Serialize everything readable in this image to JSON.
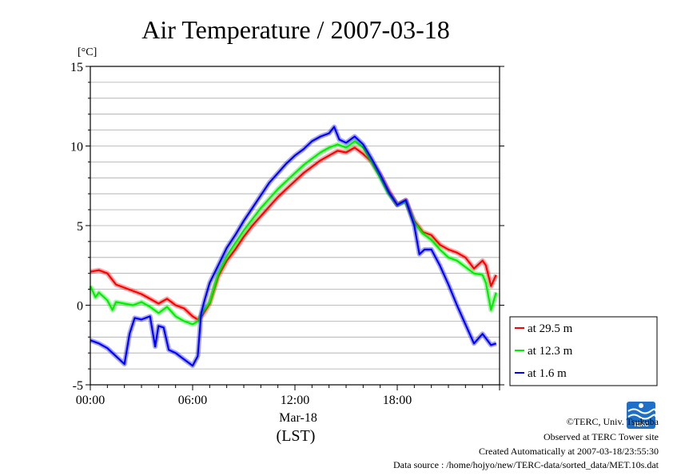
{
  "chart_data": {
    "type": "line",
    "title": "Air Temperature / 2007-03-18",
    "yunit": "[°C]",
    "ylim": [
      -5,
      15
    ],
    "yticks": [
      -5,
      0,
      5,
      10,
      15
    ],
    "xlim": [
      0,
      24
    ],
    "xticks": [
      {
        "value": 0,
        "label": "00:00"
      },
      {
        "value": 6,
        "label": "06:00"
      },
      {
        "value": 12,
        "label": "12:00"
      },
      {
        "value": 18,
        "label": "18:00"
      }
    ],
    "date_label": "Mar-18",
    "xlabel": "(LST)",
    "grid": true,
    "legend_position": "right",
    "series": [
      {
        "name": "at 29.5 m",
        "color": "#ff0000",
        "x": [
          0,
          0.5,
          1,
          1.5,
          2,
          2.5,
          3,
          3.5,
          4,
          4.5,
          5,
          5.5,
          6,
          6.3,
          6.6,
          7,
          7.5,
          8,
          8.5,
          9,
          9.5,
          10,
          10.5,
          11,
          11.5,
          12,
          12.5,
          13,
          13.5,
          14,
          14.5,
          15,
          15.5,
          16,
          16.5,
          17,
          17.5,
          18,
          18.5,
          19,
          19.5,
          20,
          20.5,
          21,
          21.5,
          22,
          22.5,
          23,
          23.2,
          23.5,
          23.8
        ],
        "y": [
          2.1,
          2.2,
          2.0,
          1.3,
          1.1,
          0.9,
          0.7,
          0.4,
          0.1,
          0.4,
          0.0,
          -0.2,
          -0.7,
          -0.9,
          -0.6,
          0.1,
          1.8,
          2.8,
          3.5,
          4.3,
          5.0,
          5.6,
          6.2,
          6.8,
          7.3,
          7.8,
          8.3,
          8.7,
          9.1,
          9.4,
          9.7,
          9.6,
          9.9,
          9.5,
          9.0,
          8.2,
          7.2,
          6.3,
          6.6,
          5.3,
          4.6,
          4.4,
          3.8,
          3.5,
          3.3,
          3.0,
          2.3,
          2.8,
          2.5,
          1.2,
          1.9
        ]
      },
      {
        "name": "at 12.3 m",
        "color": "#00ee00",
        "x": [
          0,
          0.3,
          0.5,
          1,
          1.3,
          1.5,
          2,
          2.5,
          3,
          3.5,
          4,
          4.5,
          5,
          5.5,
          6,
          6.3,
          6.6,
          7,
          7.5,
          8,
          8.5,
          9,
          9.5,
          10,
          10.5,
          11,
          11.5,
          12,
          12.5,
          13,
          13.5,
          14,
          14.5,
          15,
          15.5,
          16,
          16.5,
          17,
          17.5,
          18,
          18.5,
          19,
          19.5,
          20,
          20.5,
          21,
          21.5,
          22,
          22.5,
          23,
          23.2,
          23.5,
          23.8
        ],
        "y": [
          1.2,
          0.5,
          0.8,
          0.3,
          -0.3,
          0.2,
          0.1,
          0.0,
          0.2,
          -0.1,
          -0.5,
          -0.1,
          -0.7,
          -1.0,
          -1.2,
          -1.0,
          -0.4,
          0.2,
          2.0,
          3.1,
          3.9,
          4.7,
          5.4,
          6.1,
          6.7,
          7.3,
          7.8,
          8.3,
          8.8,
          9.2,
          9.6,
          9.9,
          10.1,
          9.9,
          10.3,
          9.9,
          9.0,
          8.0,
          7.0,
          6.3,
          6.5,
          5.2,
          4.5,
          4.1,
          3.5,
          3.0,
          2.8,
          2.4,
          2.0,
          1.9,
          1.4,
          -0.3,
          0.8
        ]
      },
      {
        "name": "at 1.6 m",
        "color": "#0000ff",
        "x": [
          0,
          0.5,
          1,
          1.5,
          2,
          2.3,
          2.6,
          3,
          3.5,
          3.8,
          4,
          4.3,
          4.6,
          5,
          5.5,
          6,
          6.3,
          6.5,
          6.7,
          7,
          7.5,
          8,
          8.5,
          9,
          9.5,
          10,
          10.5,
          11,
          11.5,
          12,
          12.5,
          13,
          13.5,
          14,
          14.3,
          14.6,
          15,
          15.5,
          16,
          16.5,
          17,
          17.5,
          18,
          18.5,
          19,
          19.3,
          19.6,
          20,
          20.5,
          21,
          21.5,
          22,
          22.5,
          23,
          23.5,
          23.8
        ],
        "y": [
          -2.2,
          -2.4,
          -2.7,
          -3.2,
          -3.7,
          -1.8,
          -0.8,
          -0.9,
          -0.7,
          -2.6,
          -1.3,
          -1.4,
          -2.8,
          -3.0,
          -3.4,
          -3.8,
          -3.2,
          -0.5,
          0.3,
          1.4,
          2.5,
          3.6,
          4.4,
          5.3,
          6.1,
          6.9,
          7.7,
          8.3,
          8.9,
          9.4,
          9.8,
          10.3,
          10.6,
          10.8,
          11.2,
          10.4,
          10.2,
          10.6,
          10.1,
          9.2,
          8.2,
          7.1,
          6.3,
          6.6,
          5.0,
          3.2,
          3.5,
          3.5,
          2.5,
          1.3,
          0.0,
          -1.2,
          -2.4,
          -1.8,
          -2.5,
          -2.4
        ]
      }
    ]
  },
  "footer": {
    "copyright": "©TERC, Univ. Tsukuba",
    "site": "Observed at TERC Tower site",
    "created": "Created Automatically at 2007-03-18/23:55:30",
    "source": "Data source : /home/hojyo/new/TERC-data/sorted_data/MET.10s.dat",
    "logo_text": "TERC"
  }
}
